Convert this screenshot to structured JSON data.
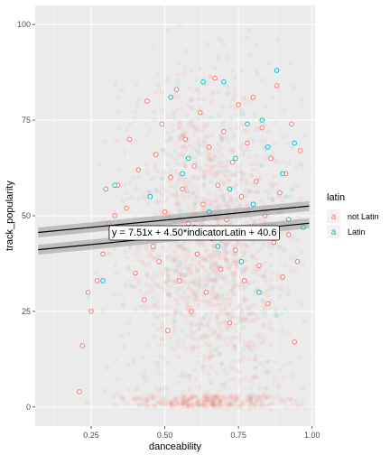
{
  "chart_data": {
    "type": "scatter",
    "xlabel": "danceability",
    "ylabel": "track_popularity",
    "xlim": [
      0.06,
      1.01
    ],
    "ylim": [
      -5,
      105
    ],
    "x_ticks": [
      0.25,
      0.5,
      0.75,
      1.0
    ],
    "x_tick_labels": [
      "0.25",
      "0.50",
      "0.75",
      "1.00"
    ],
    "y_ticks": [
      0,
      25,
      50,
      75,
      100
    ],
    "y_tick_labels": [
      "0",
      "25",
      "50",
      "75",
      "100"
    ],
    "grid": true,
    "legend": {
      "title": "latin",
      "position": "right",
      "key_glyph": "a",
      "entries": [
        {
          "label": "not Latin",
          "color": "#F8766D"
        },
        {
          "label": "Latin",
          "color": "#00BFC4"
        }
      ]
    },
    "series": [
      {
        "name": "not Latin",
        "color": "#F8766D",
        "points": [
          [
            0.21,
            4
          ],
          [
            0.22,
            16
          ],
          [
            0.24,
            30
          ],
          [
            0.25,
            25
          ],
          [
            0.27,
            33
          ],
          [
            0.29,
            40
          ],
          [
            0.3,
            57
          ],
          [
            0.31,
            48
          ],
          [
            0.33,
            50
          ],
          [
            0.34,
            58
          ],
          [
            0.36,
            45
          ],
          [
            0.37,
            52
          ],
          [
            0.38,
            70
          ],
          [
            0.4,
            35
          ],
          [
            0.41,
            62
          ],
          [
            0.42,
            47
          ],
          [
            0.43,
            28
          ],
          [
            0.44,
            80
          ],
          [
            0.45,
            55
          ],
          [
            0.46,
            42
          ],
          [
            0.47,
            66
          ],
          [
            0.48,
            38
          ],
          [
            0.49,
            74
          ],
          [
            0.5,
            51
          ],
          [
            0.51,
            20
          ],
          [
            0.52,
            60
          ],
          [
            0.53,
            45
          ],
          [
            0.54,
            83
          ],
          [
            0.55,
            33
          ],
          [
            0.56,
            57
          ],
          [
            0.57,
            70
          ],
          [
            0.58,
            48
          ],
          [
            0.59,
            25
          ],
          [
            0.6,
            63
          ],
          [
            0.61,
            40
          ],
          [
            0.62,
            77
          ],
          [
            0.63,
            53
          ],
          [
            0.64,
            30
          ],
          [
            0.65,
            68
          ],
          [
            0.66,
            44
          ],
          [
            0.67,
            86
          ],
          [
            0.68,
            58
          ],
          [
            0.69,
            36
          ],
          [
            0.7,
            72
          ],
          [
            0.71,
            49
          ],
          [
            0.72,
            22
          ],
          [
            0.73,
            64
          ],
          [
            0.74,
            41
          ],
          [
            0.75,
            79
          ],
          [
            0.76,
            55
          ],
          [
            0.77,
            33
          ],
          [
            0.78,
            69
          ],
          [
            0.79,
            46
          ],
          [
            0.8,
            81
          ],
          [
            0.81,
            59
          ],
          [
            0.82,
            37
          ],
          [
            0.83,
            73
          ],
          [
            0.84,
            50
          ],
          [
            0.85,
            27
          ],
          [
            0.86,
            65
          ],
          [
            0.87,
            43
          ],
          [
            0.88,
            84
          ],
          [
            0.89,
            56
          ],
          [
            0.9,
            34
          ],
          [
            0.91,
            61
          ],
          [
            0.92,
            45
          ],
          [
            0.93,
            74
          ],
          [
            0.94,
            17
          ],
          [
            0.95,
            38
          ],
          [
            0.96,
            67
          ]
        ]
      },
      {
        "name": "Latin",
        "color": "#00BFC4",
        "points": [
          [
            0.29,
            33
          ],
          [
            0.33,
            58
          ],
          [
            0.45,
            55
          ],
          [
            0.52,
            81
          ],
          [
            0.56,
            61
          ],
          [
            0.58,
            65
          ],
          [
            0.6,
            47
          ],
          [
            0.63,
            85
          ],
          [
            0.65,
            51
          ],
          [
            0.68,
            42
          ],
          [
            0.7,
            85
          ],
          [
            0.72,
            57
          ],
          [
            0.74,
            65
          ],
          [
            0.76,
            38
          ],
          [
            0.78,
            74
          ],
          [
            0.8,
            53
          ],
          [
            0.82,
            30
          ],
          [
            0.83,
            75
          ],
          [
            0.85,
            68
          ],
          [
            0.87,
            45
          ],
          [
            0.88,
            88
          ],
          [
            0.9,
            61
          ],
          [
            0.92,
            49
          ],
          [
            0.94,
            69
          ],
          [
            0.97,
            47
          ]
        ]
      }
    ],
    "fit_lines": [
      {
        "name": "Latin",
        "intercept": 45.1,
        "slope": 7.51
      },
      {
        "name": "not Latin",
        "intercept": 40.6,
        "slope": 7.51
      }
    ],
    "annotation": {
      "text": "y = 7.51x + 4.50*indicatorLatin + 40.6",
      "x": 0.6,
      "y": 45.5
    }
  }
}
